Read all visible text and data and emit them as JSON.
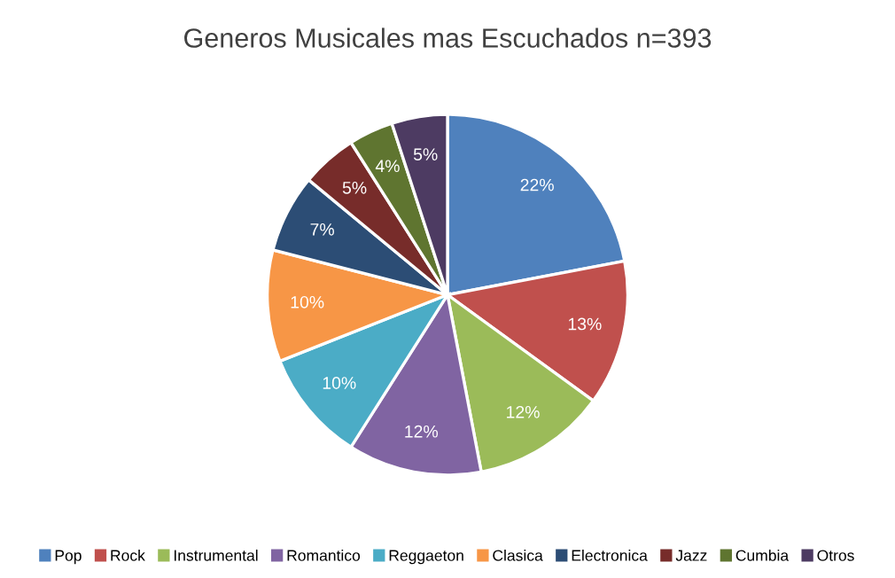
{
  "chart_data": {
    "type": "pie",
    "title": "Generos Musicales mas Escuchados n=393",
    "categories": [
      "Pop",
      "Rock",
      "Instrumental",
      "Romantico",
      "Reggaeton",
      "Clasica",
      "Electronica",
      "Jazz",
      "Cumbia",
      "Otros"
    ],
    "values": [
      22,
      13,
      12,
      12,
      10,
      10,
      7,
      5,
      4,
      5
    ],
    "colors": [
      "#4f81bd",
      "#c0504d",
      "#9bbb59",
      "#8064a2",
      "#4bacc6",
      "#f79646",
      "#2c4d75",
      "#772c2a",
      "#5f7530",
      "#4d3b62"
    ],
    "value_labels": [
      "22%",
      "13%",
      "12%",
      "12%",
      "10%",
      "10%",
      "7%",
      "5%",
      "4%",
      "5%"
    ],
    "legend": "bottom"
  }
}
